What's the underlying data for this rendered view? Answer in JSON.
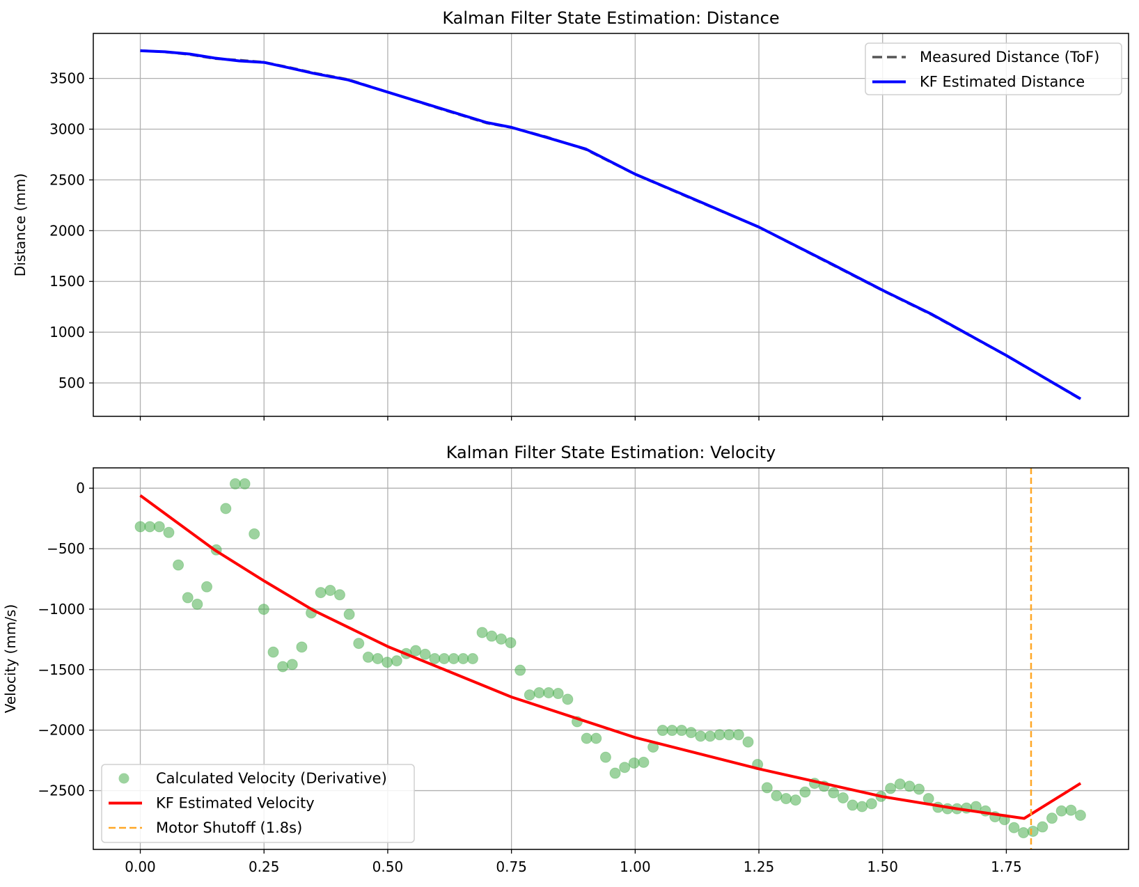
{
  "chart_data": [
    {
      "type": "line",
      "title": "Kalman Filter State Estimation: Distance",
      "xlabel": "",
      "ylabel": "Distance (mm)",
      "xlim": [
        -0.095,
        1.997
      ],
      "ylim": [
        171,
        3943
      ],
      "xticks": [
        0.0,
        0.25,
        0.5,
        0.75,
        1.0,
        1.25,
        1.5,
        1.75
      ],
      "xtick_labels": [],
      "yticks": [
        500,
        1000,
        1500,
        2000,
        2500,
        3000,
        3500
      ],
      "ytick_labels": [
        "500",
        "1000",
        "1500",
        "2000",
        "2500",
        "3000",
        "3500"
      ],
      "grid": true,
      "legend": "top-right",
      "series": [
        {
          "name": "Measured Distance (ToF)",
          "color": "#555555",
          "style": "dashed",
          "x": [
            0,
            0.05,
            0.1,
            0.15,
            0.2,
            0.25,
            0.3,
            0.35,
            0.42,
            0.5,
            0.6,
            0.7,
            0.75,
            0.82,
            0.9,
            1.0,
            1.1,
            1.25,
            1.4,
            1.5,
            1.6,
            1.75,
            1.9
          ],
          "y": [
            3775,
            3760,
            3735,
            3695,
            3680,
            3660,
            3610,
            3555,
            3490,
            3365,
            3210,
            3060,
            3015,
            2925,
            2800,
            2555,
            2345,
            2035,
            1660,
            1410,
            1170,
            770,
            340
          ]
        },
        {
          "name": "KF Estimated Distance",
          "color": "#0000ff",
          "style": "solid",
          "x": [
            0,
            0.05,
            0.1,
            0.15,
            0.2,
            0.25,
            0.3,
            0.35,
            0.42,
            0.5,
            0.6,
            0.7,
            0.75,
            0.82,
            0.9,
            1.0,
            1.1,
            1.25,
            1.4,
            1.5,
            1.6,
            1.75,
            1.9
          ],
          "y": [
            3772,
            3762,
            3740,
            3700,
            3672,
            3658,
            3605,
            3550,
            3485,
            3365,
            3215,
            3065,
            3018,
            2920,
            2805,
            2557,
            2350,
            2036,
            1665,
            1414,
            1175,
            771,
            343
          ]
        }
      ]
    },
    {
      "type": "scatter",
      "title": "Kalman Filter State Estimation: Velocity",
      "xlabel": "",
      "ylabel": "Velocity (mm/s)",
      "xlim": [
        -0.095,
        1.997
      ],
      "ylim": [
        -2986,
        168
      ],
      "xticks": [
        0.0,
        0.25,
        0.5,
        0.75,
        1.0,
        1.25,
        1.5,
        1.75
      ],
      "xtick_labels": [
        "0.00",
        "0.25",
        "0.50",
        "0.75",
        "1.00",
        "1.25",
        "1.50",
        "1.75"
      ],
      "yticks": [
        0,
        -500,
        -1000,
        -1500,
        -2000,
        -2500
      ],
      "ytick_labels": [
        "0",
        "−500",
        "−1000",
        "−1500",
        "−2000",
        "−2500"
      ],
      "grid": true,
      "legend": "bottom-left",
      "series": [
        {
          "name": "Calculated Velocity (Derivative)",
          "color": "#4caf50",
          "style": "markers",
          "x_start": 0,
          "x_step": 0.01919,
          "y": [
            -318,
            -318,
            -318,
            -366,
            -635,
            -905,
            -959,
            -815,
            -510,
            -168,
            36,
            36,
            -378,
            -1001,
            -1355,
            -1475,
            -1457,
            -1313,
            -1031,
            -863,
            -845,
            -881,
            -1043,
            -1283,
            -1397,
            -1409,
            -1439,
            -1427,
            -1367,
            -1343,
            -1373,
            -1409,
            -1409,
            -1409,
            -1409,
            -1409,
            -1193,
            -1223,
            -1247,
            -1277,
            -1505,
            -1709,
            -1691,
            -1691,
            -1697,
            -1745,
            -1930,
            -2068,
            -2068,
            -2224,
            -2356,
            -2308,
            -2272,
            -2266,
            -2140,
            -2002,
            -2002,
            -2002,
            -2020,
            -2050,
            -2050,
            -2038,
            -2038,
            -2038,
            -2098,
            -2284,
            -2476,
            -2542,
            -2566,
            -2578,
            -2512,
            -2440,
            -2464,
            -2518,
            -2560,
            -2620,
            -2632,
            -2608,
            -2548,
            -2482,
            -2446,
            -2464,
            -2488,
            -2566,
            -2638,
            -2650,
            -2650,
            -2644,
            -2632,
            -2668,
            -2716,
            -2740,
            -2806,
            -2848,
            -2836,
            -2800,
            -2728,
            -2668,
            -2662,
            -2704
          ]
        },
        {
          "name": "KF Estimated Velocity",
          "color": "#ff0000",
          "style": "solid",
          "x": [
            0,
            0.15,
            0.25,
            0.35,
            0.5,
            0.75,
            1.0,
            1.25,
            1.5,
            1.65,
            1.786,
            1.9
          ],
          "y": [
            -60,
            -510,
            -766,
            -1010,
            -1309,
            -1726,
            -2061,
            -2320,
            -2550,
            -2650,
            -2730,
            -2440
          ]
        },
        {
          "name": "Motor Shutoff (1.8s)",
          "color": "#ffa726",
          "style": "dashed-vertical",
          "x_value": 1.8
        }
      ]
    }
  ]
}
